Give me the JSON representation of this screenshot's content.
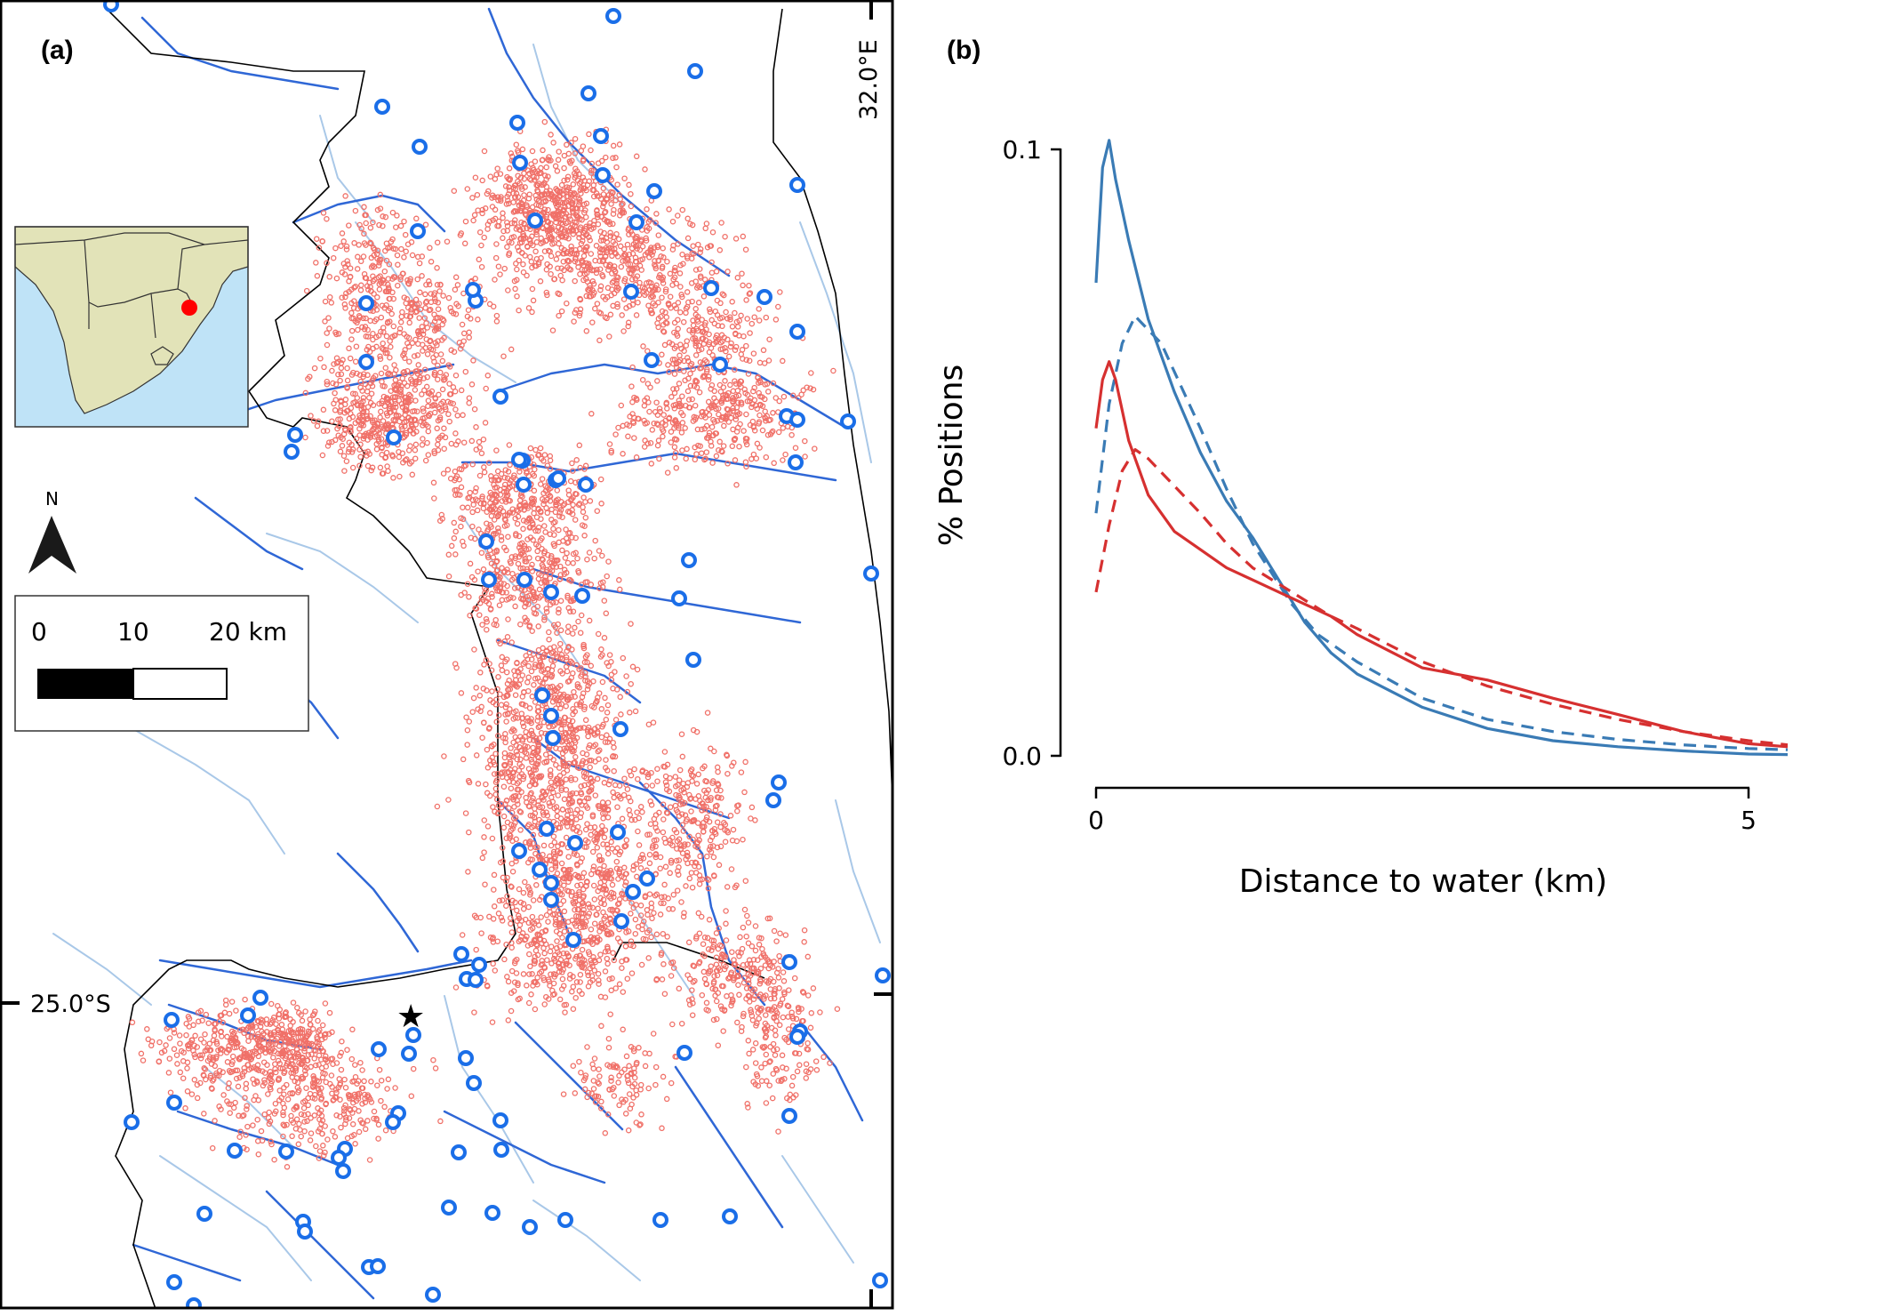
{
  "panel_a": {
    "label": "(a)",
    "lon_label": "32.0°E",
    "lat_label": "25.0°S",
    "north_label": "N",
    "scale": {
      "labels": [
        "0",
        "10",
        "20 km"
      ]
    },
    "colors": {
      "river_major": "#2f67d6",
      "river_minor": "#a9c8e8",
      "positions": "#f07068",
      "water_points": "#1a6ee8",
      "boundary": "#000000",
      "inset_land": "#e2e3b8",
      "inset_sea": "#bfe3f7",
      "study_site": "#ff0000"
    },
    "icons": [
      "north-arrow-icon",
      "star-icon"
    ]
  },
  "panel_b": {
    "label": "(b)"
  },
  "chart_data": {
    "type": "line",
    "xlabel": "Distance to water (km)",
    "ylabel": "% Positions",
    "xticks": [
      "0",
      "5"
    ],
    "yticks": [
      "0.0",
      "0.1"
    ],
    "xlim": [
      -0.05,
      5.3
    ],
    "ylim": [
      0,
      0.1
    ],
    "series": [
      {
        "color": "#3a7bb5",
        "style": "solid",
        "x": [
          0,
          0.05,
          0.1,
          0.15,
          0.25,
          0.4,
          0.6,
          0.8,
          1.0,
          1.2,
          1.4,
          1.6,
          1.8,
          2.0,
          2.5,
          3.0,
          3.5,
          4.0,
          4.5,
          5.0,
          5.3
        ],
        "y": [
          0.078,
          0.097,
          0.1015,
          0.095,
          0.085,
          0.072,
          0.06,
          0.05,
          0.042,
          0.036,
          0.029,
          0.022,
          0.017,
          0.0135,
          0.008,
          0.0045,
          0.0025,
          0.0015,
          0.0008,
          0.0003,
          0.0002
        ]
      },
      {
        "color": "#3a7bb5",
        "style": "dashed",
        "x": [
          0,
          0.1,
          0.2,
          0.3,
          0.5,
          0.8,
          1.0,
          1.2,
          1.5,
          1.7,
          2.0,
          2.5,
          3.0,
          3.5,
          4.0,
          4.5,
          5.0,
          5.3
        ],
        "y": [
          0.04,
          0.058,
          0.068,
          0.0725,
          0.068,
          0.054,
          0.044,
          0.035,
          0.025,
          0.02,
          0.0155,
          0.0095,
          0.006,
          0.004,
          0.0027,
          0.0018,
          0.0012,
          0.001
        ]
      },
      {
        "color": "#d63030",
        "style": "solid",
        "x": [
          0,
          0.05,
          0.1,
          0.15,
          0.25,
          0.4,
          0.6,
          0.8,
          1.0,
          1.2,
          1.5,
          1.8,
          2.0,
          2.5,
          3.0,
          3.5,
          4.0,
          4.5,
          5.0,
          5.3
        ],
        "y": [
          0.054,
          0.062,
          0.065,
          0.062,
          0.052,
          0.043,
          0.037,
          0.034,
          0.031,
          0.029,
          0.026,
          0.023,
          0.02,
          0.0145,
          0.0125,
          0.0095,
          0.0068,
          0.004,
          0.002,
          0.0015
        ]
      },
      {
        "color": "#d63030",
        "style": "dashed",
        "x": [
          0,
          0.1,
          0.2,
          0.3,
          0.4,
          0.6,
          0.8,
          1.0,
          1.2,
          1.5,
          1.8,
          2.0,
          2.5,
          3.0,
          3.5,
          4.0,
          4.5,
          5.0,
          5.3
        ],
        "y": [
          0.027,
          0.038,
          0.047,
          0.0505,
          0.049,
          0.0445,
          0.04,
          0.035,
          0.031,
          0.027,
          0.023,
          0.021,
          0.0155,
          0.0115,
          0.0085,
          0.006,
          0.004,
          0.0025,
          0.0018
        ]
      }
    ]
  }
}
